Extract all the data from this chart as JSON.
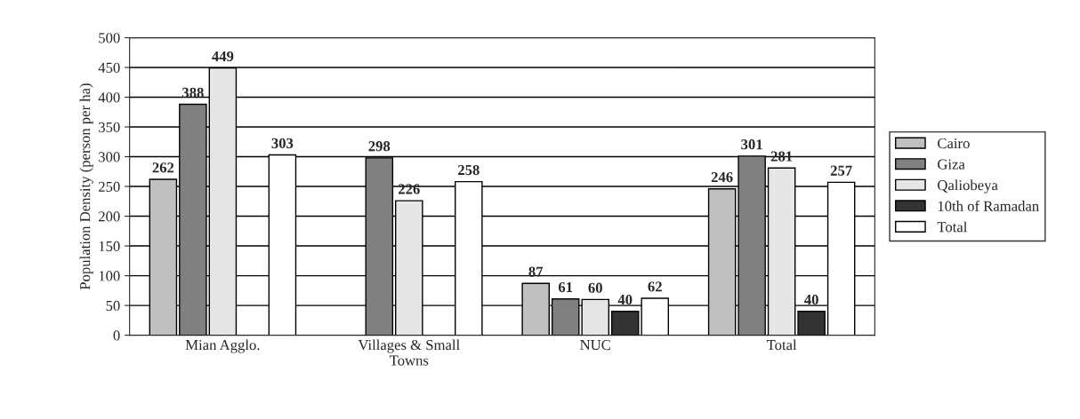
{
  "chart_data": {
    "type": "bar",
    "ylabel": "Population Density (person per ha)",
    "categories": [
      "Mian Agglo.",
      "Villages & Small\nTowns",
      "NUC",
      "Total"
    ],
    "series": [
      {
        "name": "Cairo",
        "color": "#c0c0c0",
        "values": [
          262,
          null,
          87,
          246
        ]
      },
      {
        "name": "Giza",
        "color": "#808080",
        "values": [
          388,
          298,
          61,
          301
        ]
      },
      {
        "name": "Qaliobeya",
        "color": "#e6e6e6",
        "values": [
          449,
          226,
          60,
          281
        ]
      },
      {
        "name": "10th of Ramadan",
        "color": "#333333",
        "values": [
          null,
          null,
          40,
          40
        ]
      },
      {
        "name": "Total",
        "color": "#ffffff",
        "values": [
          303,
          258,
          62,
          257
        ]
      }
    ],
    "ylim": [
      0,
      500
    ],
    "yticks": [
      0,
      50,
      100,
      150,
      200,
      250,
      300,
      350,
      400,
      450,
      500
    ],
    "grid": "y",
    "legend": "right",
    "data_labels": true
  }
}
